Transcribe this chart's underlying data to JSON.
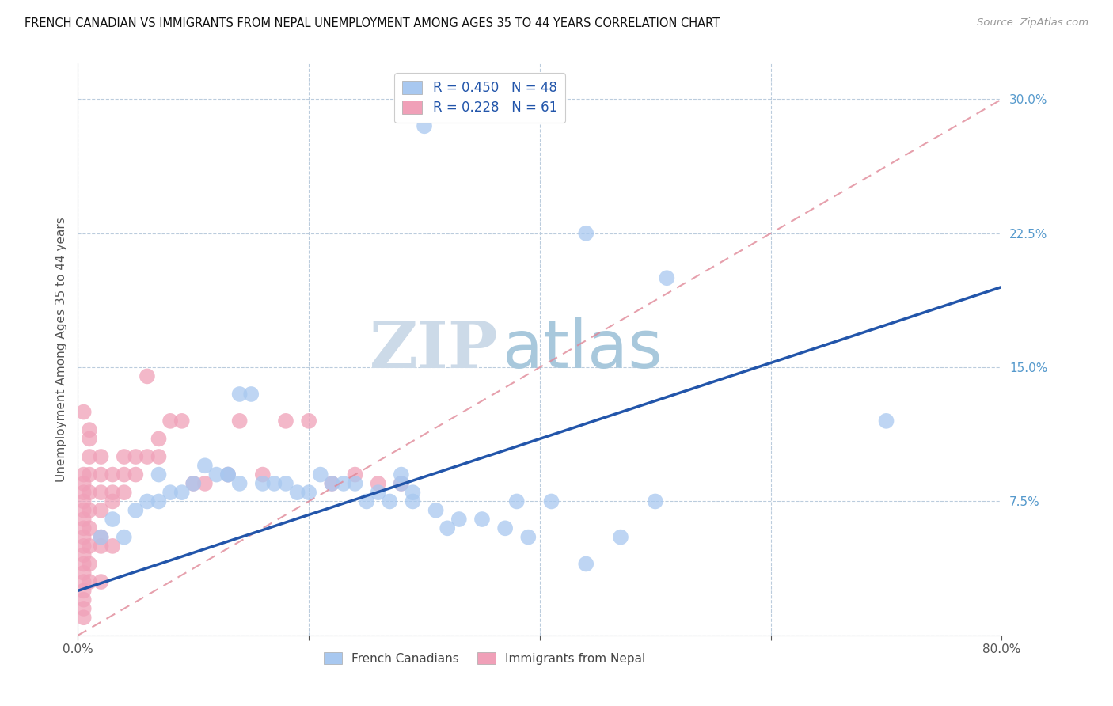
{
  "title": "FRENCH CANADIAN VS IMMIGRANTS FROM NEPAL UNEMPLOYMENT AMONG AGES 35 TO 44 YEARS CORRELATION CHART",
  "source": "Source: ZipAtlas.com",
  "ylabel": "Unemployment Among Ages 35 to 44 years",
  "watermark_zip": "ZIP",
  "watermark_atlas": "atlas",
  "blue_R": 0.45,
  "blue_N": 48,
  "pink_R": 0.228,
  "pink_N": 61,
  "xlim": [
    0.0,
    0.8
  ],
  "ylim": [
    0.0,
    0.32
  ],
  "yticks": [
    0.0,
    0.075,
    0.15,
    0.225,
    0.3
  ],
  "ytick_labels": [
    "",
    "7.5%",
    "15.0%",
    "22.5%",
    "30.0%"
  ],
  "blue_color": "#A8C8F0",
  "pink_color": "#F0A0B8",
  "blue_line_color": "#2255AA",
  "pink_line_color": "#E08898",
  "grid_color": "#BBCCDD",
  "background": "#FFFFFF",
  "blue_points_x": [
    0.3,
    0.02,
    0.03,
    0.04,
    0.05,
    0.06,
    0.07,
    0.08,
    0.09,
    0.1,
    0.11,
    0.12,
    0.13,
    0.14,
    0.15,
    0.16,
    0.17,
    0.18,
    0.19,
    0.2,
    0.21,
    0.22,
    0.23,
    0.24,
    0.25,
    0.26,
    0.27,
    0.28,
    0.29,
    0.31,
    0.33,
    0.35,
    0.37,
    0.39,
    0.41,
    0.44,
    0.47,
    0.5,
    0.7,
    0.07,
    0.13,
    0.14,
    0.38,
    0.44,
    0.51,
    0.28,
    0.29,
    0.32
  ],
  "blue_points_y": [
    0.285,
    0.055,
    0.065,
    0.055,
    0.07,
    0.075,
    0.075,
    0.08,
    0.08,
    0.085,
    0.095,
    0.09,
    0.09,
    0.135,
    0.135,
    0.085,
    0.085,
    0.085,
    0.08,
    0.08,
    0.09,
    0.085,
    0.085,
    0.085,
    0.075,
    0.08,
    0.075,
    0.09,
    0.075,
    0.07,
    0.065,
    0.065,
    0.06,
    0.055,
    0.075,
    0.04,
    0.055,
    0.075,
    0.12,
    0.09,
    0.09,
    0.085,
    0.075,
    0.225,
    0.2,
    0.085,
    0.08,
    0.06
  ],
  "pink_points_x": [
    0.005,
    0.005,
    0.005,
    0.005,
    0.005,
    0.005,
    0.005,
    0.005,
    0.005,
    0.005,
    0.005,
    0.005,
    0.005,
    0.005,
    0.005,
    0.005,
    0.005,
    0.01,
    0.01,
    0.01,
    0.01,
    0.01,
    0.01,
    0.01,
    0.01,
    0.01,
    0.02,
    0.02,
    0.02,
    0.02,
    0.02,
    0.02,
    0.03,
    0.03,
    0.03,
    0.04,
    0.04,
    0.04,
    0.05,
    0.05,
    0.06,
    0.06,
    0.07,
    0.07,
    0.08,
    0.09,
    0.1,
    0.11,
    0.13,
    0.14,
    0.16,
    0.18,
    0.2,
    0.22,
    0.24,
    0.26,
    0.28,
    0.03,
    0.02,
    0.01,
    0.005
  ],
  "pink_points_y": [
    0.01,
    0.015,
    0.02,
    0.025,
    0.03,
    0.035,
    0.04,
    0.045,
    0.05,
    0.055,
    0.06,
    0.065,
    0.07,
    0.075,
    0.08,
    0.085,
    0.09,
    0.03,
    0.04,
    0.05,
    0.06,
    0.07,
    0.08,
    0.09,
    0.1,
    0.11,
    0.03,
    0.05,
    0.07,
    0.08,
    0.09,
    0.1,
    0.05,
    0.08,
    0.09,
    0.08,
    0.09,
    0.1,
    0.09,
    0.1,
    0.1,
    0.145,
    0.1,
    0.11,
    0.12,
    0.12,
    0.085,
    0.085,
    0.09,
    0.12,
    0.09,
    0.12,
    0.12,
    0.085,
    0.09,
    0.085,
    0.085,
    0.075,
    0.055,
    0.115,
    0.125
  ],
  "blue_line_x0": 0.0,
  "blue_line_y0": 0.025,
  "blue_line_x1": 0.8,
  "blue_line_y1": 0.195,
  "pink_line_x0": 0.0,
  "pink_line_y0": 0.0,
  "pink_line_x1": 0.8,
  "pink_line_y1": 0.3
}
